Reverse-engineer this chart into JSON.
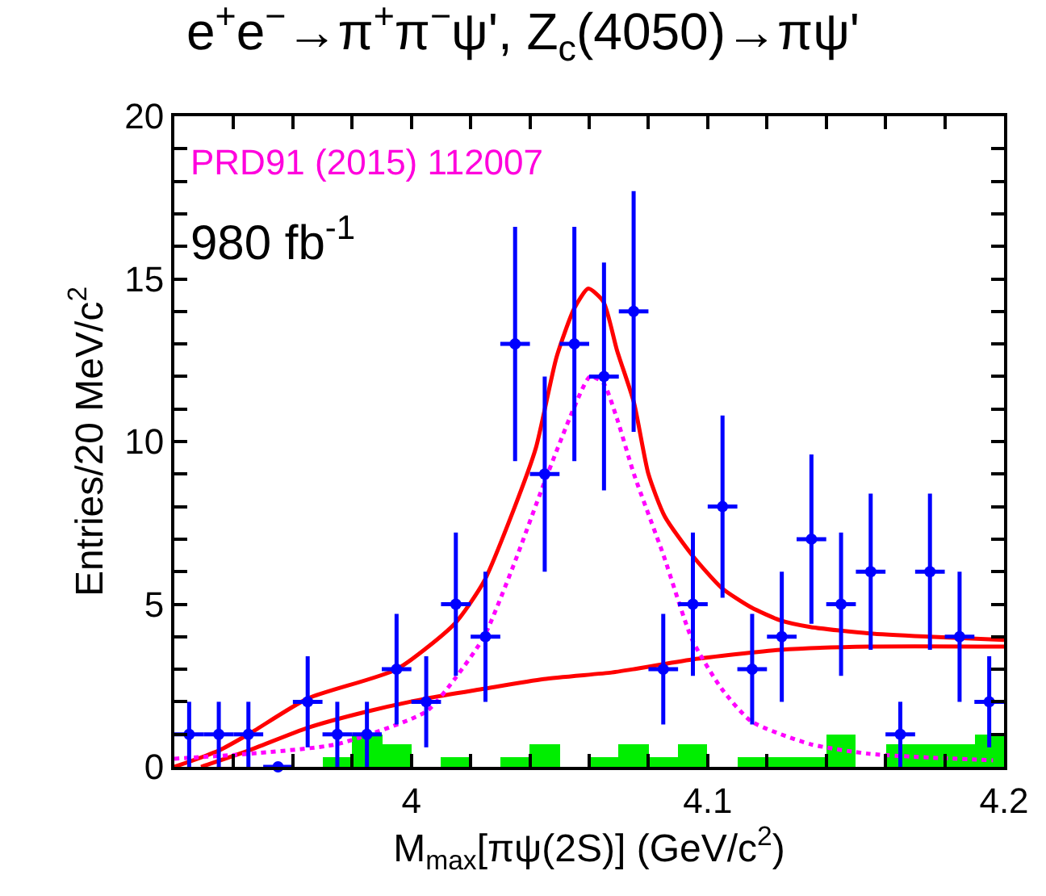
{
  "chart_data": {
    "type": "scatter",
    "title": "e$^{+}$e$^{−}$→π$^{+}$π$^{−}$ψ', Z$_{c}$(4050)→πψ'",
    "xlabel": "M$_{max}$[πψ(2S)] (GeV/c$^{2}$)",
    "ylabel": "Entries/20 MeV/c$^{2}$",
    "annotations": [
      "PRD91 (2015) 112007",
      "980 fb$^{-1}$"
    ],
    "xlim": [
      3.92,
      4.2
    ],
    "xticks": [
      {
        "value": 3.92,
        "label": null
      },
      {
        "value": 3.94,
        "label": null
      },
      {
        "value": 3.96,
        "label": null
      },
      {
        "value": 3.98,
        "label": null
      },
      4,
      {
        "value": 4.02,
        "label": null
      },
      {
        "value": 4.04,
        "label": null
      },
      {
        "value": 4.06,
        "label": null
      },
      {
        "value": 4.08,
        "label": null
      },
      4.1,
      {
        "value": 4.12,
        "label": null
      },
      {
        "value": 4.14,
        "label": null
      },
      {
        "value": 4.16,
        "label": null
      },
      {
        "value": 4.18,
        "label": null
      },
      4.2
    ],
    "ylim": [
      0,
      20
    ],
    "yticks": [
      0,
      {
        "value": 1,
        "label": null
      },
      {
        "value": 2,
        "label": null
      },
      {
        "value": 3,
        "label": null
      },
      {
        "value": 4,
        "label": null
      },
      5,
      {
        "value": 6,
        "label": null
      },
      {
        "value": 7,
        "label": null
      },
      {
        "value": 8,
        "label": null
      },
      {
        "value": 9,
        "label": null
      },
      10,
      {
        "value": 11,
        "label": null
      },
      {
        "value": 12,
        "label": null
      },
      {
        "value": 13,
        "label": null
      },
      {
        "value": 14,
        "label": null
      },
      15,
      {
        "value": 16,
        "label": null
      },
      {
        "value": 17,
        "label": null
      },
      {
        "value": 18,
        "label": null
      },
      {
        "value": 19,
        "label": null
      },
      20
    ],
    "series": [
      {
        "type": "bar",
        "color": "#00ee00",
        "x": [
          3.925,
          3.935,
          3.945,
          3.955,
          3.965,
          3.975,
          3.985,
          3.995,
          4.005,
          4.015,
          4.025,
          4.035,
          4.045,
          4.055,
          4.065,
          4.075,
          4.085,
          4.095,
          4.105,
          4.115,
          4.125,
          4.135,
          4.145,
          4.155,
          4.165,
          4.175,
          4.185,
          4.195
        ],
        "values": [
          0,
          0,
          0,
          0,
          0,
          0.3,
          1,
          0.7,
          0,
          0.3,
          0,
          0.3,
          0.7,
          0,
          0.3,
          0.7,
          0.3,
          0.7,
          0,
          0.3,
          0.3,
          0.3,
          1,
          0,
          0.7,
          0.7,
          0.7,
          1
        ]
      },
      {
        "type": "line",
        "color": "#ff0000",
        "line_style": "solid",
        "marker": "none",
        "x": [
          3.92,
          3.935,
          3.945,
          3.965,
          3.995,
          4.0146,
          4.0245,
          4.0345,
          4.042,
          4.049,
          4.055,
          4.0597,
          4.0648,
          4.0694,
          4.0751,
          4.08,
          4.0855,
          4.0948,
          4.1047,
          4.1147,
          4.1246,
          4.1346,
          4.1546,
          4.1746,
          4.2
        ],
        "values": [
          0,
          0.5,
          1.0,
          2.1,
          3.0,
          4.4,
          5.7,
          7.9,
          9.8,
          12.6,
          14.1,
          14.7,
          14.3,
          12.8,
          11.2,
          9.0,
          7.7,
          6.5,
          5.5,
          4.9,
          4.5,
          4.3,
          4.1,
          4.0,
          3.9
        ]
      },
      {
        "type": "line",
        "color": "#ff0000",
        "line_style": "solid",
        "marker": "none",
        "x": [
          3.929,
          3.945,
          3.965,
          3.985,
          4.005,
          4.0245,
          4.0447,
          4.0676,
          4.0748,
          4.0948,
          4.1246,
          4.1546,
          4.2
        ],
        "values": [
          0,
          0.5,
          1.2,
          1.7,
          2.1,
          2.4,
          2.7,
          2.9,
          3.0,
          3.3,
          3.6,
          3.7,
          3.7
        ]
      },
      {
        "type": "line",
        "color": "#ff00ff",
        "line_style": "dotted",
        "marker": "none",
        "x": [
          3.92,
          3.945,
          3.975,
          4.005,
          4.0146,
          4.0245,
          4.0345,
          4.0447,
          4.0547,
          4.0603,
          4.0648,
          4.0694,
          4.0751,
          4.0851,
          4.0948,
          4.1047,
          4.1147,
          4.1346,
          4.1546,
          4.1963
        ],
        "values": [
          0.25,
          0.4,
          0.7,
          1.7,
          2.7,
          4.0,
          6.2,
          8.7,
          11.0,
          12.0,
          11.8,
          10.7,
          9.0,
          6.5,
          3.9,
          2.4,
          1.4,
          0.7,
          0.4,
          0.2
        ]
      },
      {
        "color": "#0000ff",
        "marker": "circle",
        "x": [
          3.925,
          3.935,
          3.945,
          3.955,
          3.965,
          3.975,
          3.985,
          3.995,
          4.005,
          4.015,
          4.025,
          4.035,
          4.045,
          4.055,
          4.065,
          4.075,
          4.085,
          4.095,
          4.105,
          4.115,
          4.125,
          4.135,
          4.145,
          4.155,
          4.165,
          4.175,
          4.185,
          4.195
        ],
        "values": [
          1,
          1,
          1,
          0,
          2,
          1,
          1,
          3,
          2,
          5,
          4,
          13,
          9,
          13,
          12,
          14,
          3,
          5,
          8,
          3,
          4,
          7,
          5,
          6,
          1,
          6,
          4,
          2
        ],
        "errors": [
          1,
          1,
          1,
          null,
          1.4,
          1,
          1,
          1.7,
          1.4,
          2.2,
          2,
          3.6,
          3,
          3.6,
          3.5,
          3.7,
          1.7,
          2.2,
          2.8,
          1.7,
          2,
          2.6,
          2.2,
          2.4,
          1,
          2.4,
          2,
          1.4
        ],
        "xerrors": [
          0.005,
          0.005,
          0.005,
          0.005,
          0.005,
          0.005,
          0.005,
          0.005,
          0.005,
          0.005,
          0.005,
          0.005,
          0.005,
          0.005,
          0.005,
          0.005,
          0.005,
          0.005,
          0.005,
          0.005,
          0.005,
          0.005,
          0.005,
          0.005,
          0.005,
          0.005,
          0.005,
          0.005
        ]
      }
    ]
  }
}
